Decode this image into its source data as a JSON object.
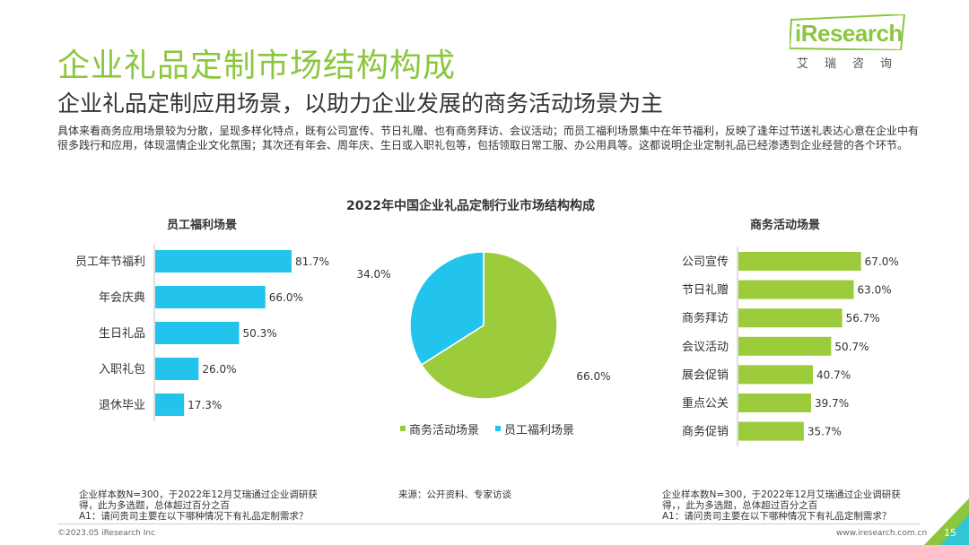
{
  "header": {
    "title": "企业礼品定制市场结构构成",
    "subtitle": "企业礼品定制应用场景，以助力企业发展的商务活动场景为主",
    "description": "具体来看商务应用场景较为分散，呈现多样化特点，既有公司宣传、节日礼赠、也有商务拜访、会议活动；而员工福利场景集中在年节福利，反映了逢年过节送礼表达心意在企业中有很多践行和应用，体现温情企业文化氛围；其次还有年会、周年庆、生日或入职礼包等，包括领取日常工服、办公用具等。这都说明企业定制礼品已经渗透到企业经营的各个环节。"
  },
  "logo": {
    "text": "iResearch",
    "cn": "艾瑞咨询"
  },
  "colors": {
    "green": "#9ccc3c",
    "blue": "#22c4ee",
    "title_green": "#8cc63f"
  },
  "chart_data": [
    {
      "type": "bar",
      "orientation": "horizontal",
      "title": "员工福利场景",
      "categories": [
        "员工年节福利",
        "年会庆典",
        "生日礼品",
        "入职礼包",
        "退休毕业"
      ],
      "values": [
        81.7,
        66.0,
        50.3,
        26.0,
        17.3
      ],
      "value_labels": [
        "81.7%",
        "66.0%",
        "50.3%",
        "26.0%",
        "17.3%"
      ],
      "color": "#22c4ee",
      "xlim": [
        0,
        100
      ]
    },
    {
      "type": "pie",
      "title": "2022年中国企业礼品定制行业市场结构构成",
      "labels": [
        "商务活动场景",
        "员工福利场景"
      ],
      "values": [
        66.0,
        34.0
      ],
      "value_labels": [
        "66.0%",
        "34.0%"
      ],
      "colors": [
        "#9ccc3c",
        "#22c4ee"
      ],
      "legend_position": "bottom"
    },
    {
      "type": "bar",
      "orientation": "horizontal",
      "title": "商务活动场景",
      "categories": [
        "公司宣传",
        "节日礼赠",
        "商务拜访",
        "会议活动",
        "展会促销",
        "重点公关",
        "商务促销"
      ],
      "values": [
        67.0,
        63.0,
        56.7,
        50.7,
        40.7,
        39.7,
        35.7
      ],
      "value_labels": [
        "67.0%",
        "63.0%",
        "56.7%",
        "50.7%",
        "40.7%",
        "39.7%",
        "35.7%"
      ],
      "color": "#9ccc3c",
      "xlim": [
        0,
        100
      ]
    }
  ],
  "notes": {
    "left": "企业样本数N=300，于2022年12月艾瑞通过企业调研获得，此为多选题，总体超过百分之百\nA1：请问贵司主要在以下哪种情况下有礼品定制需求？",
    "middle": "来源：公开资料、专家访谈",
    "right": "企业样本数N=300，于2022年12月艾瑞通过企业调研获得，，此为多选题，总体超过百分之百\nA1：请问贵司主要在以下哪种情况下有礼品定制需求？"
  },
  "footer": {
    "copyright": "©2023.05 iResearch Inc",
    "url": "www.iresearch.com.cn",
    "page": "15"
  }
}
